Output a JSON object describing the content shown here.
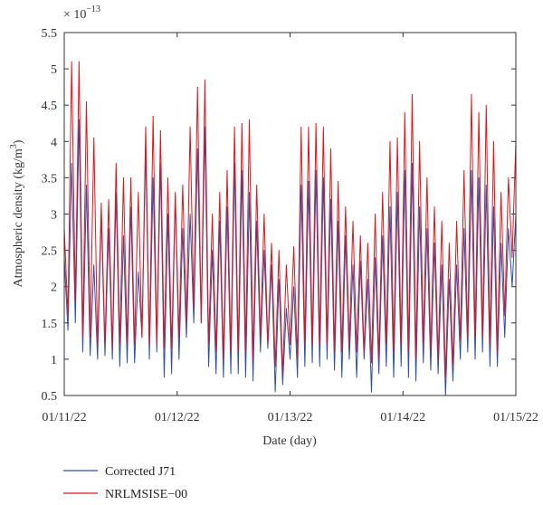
{
  "chart_data": {
    "type": "line",
    "title": "",
    "xlabel": "Date (day)",
    "ylabel_main": "Atmospheric density (kg/m",
    "ylabel_sup": "3",
    "ylabel_end": ")",
    "multiplier_base": "× 10",
    "multiplier_exp": "−13",
    "xlim": [
      "01/11/22",
      "01/15/22"
    ],
    "ylim": [
      0.5,
      5.5
    ],
    "yticks": [
      "0.5",
      "1",
      "1.5",
      "2",
      "2.5",
      "3",
      "3.5",
      "4",
      "4.5",
      "5",
      "5.5"
    ],
    "xticks": [
      "01/11/22",
      "01/12/22",
      "01/13/22",
      "01/14/22",
      "01/15/22"
    ],
    "grid": false,
    "legend_position": "bottom-left",
    "series": [
      {
        "name": "Corrected J71",
        "color": "#2b4fb0",
        "values": [
          2.4,
          1.4,
          3.7,
          1.5,
          4.3,
          1.1,
          3.4,
          1.05,
          2.3,
          1.0,
          3.0,
          1.05,
          2.8,
          1.0,
          3.3,
          0.9,
          2.7,
          0.95,
          3.1,
          0.95,
          2.2,
          1.3,
          3.9,
          1.0,
          3.5,
          1.1,
          3.7,
          0.75,
          3.0,
          0.8,
          3.25,
          1.0,
          2.8,
          1.3,
          3.0,
          1.5,
          3.9,
          1.5,
          4.2,
          0.9,
          2.5,
          0.8,
          2.9,
          0.75,
          3.1,
          0.8,
          3.7,
          0.8,
          3.6,
          0.75,
          3.3,
          0.7,
          2.9,
          1.1,
          2.5,
          1.15,
          2.3,
          0.55,
          2.1,
          0.65,
          1.7,
          1.0,
          2.0,
          0.75,
          3.4,
          0.9,
          3.45,
          0.95,
          3.6,
          0.9,
          3.5,
          1.0,
          3.2,
          0.85,
          2.9,
          0.75,
          2.7,
          1.0,
          2.3,
          0.75,
          2.35,
          1.0,
          2.1,
          0.55,
          2.4,
          0.8,
          2.7,
          0.9,
          3.1,
          0.75,
          3.3,
          0.9,
          3.6,
          0.75,
          3.7,
          0.7,
          3.1,
          0.95,
          2.8,
          0.85,
          2.6,
          0.8,
          2.3,
          0.5,
          2.1,
          0.7,
          2.3,
          1.0,
          2.8,
          1.1,
          3.6,
          1.0,
          3.5,
          1.1,
          3.4,
          0.9,
          3.1,
          0.9,
          2.6,
          1.3,
          2.8,
          2.0,
          3.0
        ]
      },
      {
        "name": "NRLMSISE−00",
        "color": "#e0161b",
        "values": [
          2.8,
          1.6,
          5.1,
          1.8,
          5.1,
          1.3,
          4.55,
          1.3,
          4.05,
          1.2,
          3.15,
          1.2,
          3.2,
          1.15,
          3.7,
          1.2,
          3.5,
          1.2,
          3.5,
          1.2,
          3.3,
          1.3,
          4.2,
          1.2,
          4.35,
          1.2,
          4.15,
          1.15,
          3.5,
          1.15,
          3.3,
          1.3,
          3.4,
          1.5,
          4.2,
          1.7,
          4.75,
          1.5,
          4.85,
          1.2,
          3.0,
          1.1,
          3.3,
          1.0,
          3.6,
          1.1,
          4.2,
          1.1,
          4.25,
          1.1,
          4.3,
          1.0,
          3.4,
          1.3,
          3.0,
          1.2,
          2.6,
          0.9,
          2.5,
          0.8,
          2.3,
          1.2,
          2.55,
          1.0,
          4.2,
          1.2,
          4.2,
          1.2,
          4.25,
          1.2,
          4.2,
          1.2,
          3.9,
          1.1,
          3.45,
          1.1,
          3.1,
          1.2,
          2.9,
          1.1,
          2.7,
          1.1,
          2.6,
          0.95,
          3.0,
          1.0,
          3.3,
          1.2,
          4.0,
          1.1,
          4.05,
          1.2,
          4.4,
          1.1,
          4.65,
          1.0,
          4.0,
          1.2,
          3.5,
          1.1,
          3.1,
          1.0,
          2.9,
          0.75,
          2.6,
          0.9,
          2.9,
          1.25,
          3.6,
          1.3,
          4.65,
          1.3,
          4.4,
          1.3,
          4.5,
          1.2,
          4.0,
          1.1,
          3.3,
          1.6,
          3.5,
          2.4,
          4.0
        ]
      }
    ]
  }
}
